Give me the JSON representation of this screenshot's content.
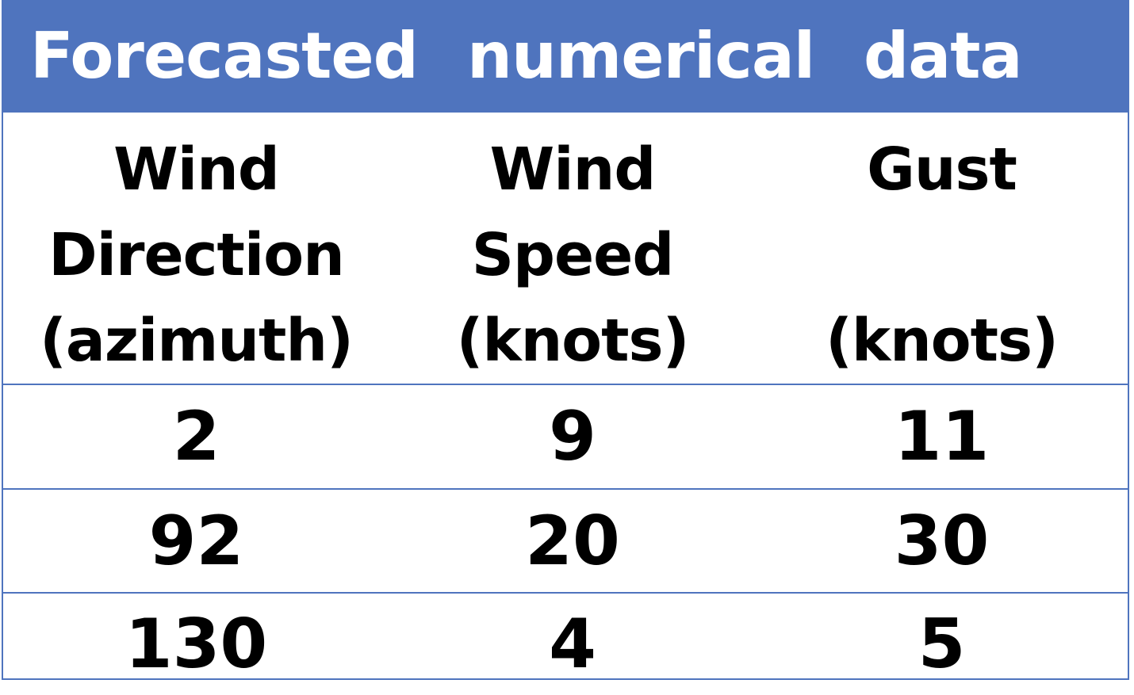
{
  "banner": {
    "word1": "Forecasted",
    "word2": "numerical",
    "word3": "data"
  },
  "columns": [
    {
      "line1": "Wind",
      "line2": "Direction",
      "line3": "(azimuth)"
    },
    {
      "line1": "Wind",
      "line2": "Speed",
      "line3": "(knots)"
    },
    {
      "line1": "Gust",
      "line2": "",
      "line3": "(knots)"
    }
  ],
  "rows": [
    [
      "2",
      "9",
      "11"
    ],
    [
      "92",
      "20",
      "30"
    ],
    [
      "130",
      "4",
      "5"
    ]
  ],
  "colors": {
    "banner_bg": "#4f74be",
    "banner_text": "#ffffff",
    "grid_line": "#4f74be",
    "text": "#000000"
  }
}
